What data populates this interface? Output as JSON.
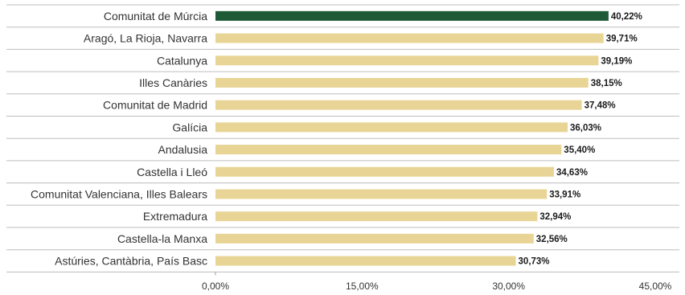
{
  "chart_data": {
    "type": "bar",
    "orientation": "horizontal",
    "categories": [
      "Comunitat de Múrcia",
      "Aragó, La Rioja, Navarra",
      "Catalunya",
      "Illes Canàries",
      "Comunitat de Madrid",
      "Galícia",
      "Andalusia",
      "Castella i Lleó",
      "Comunitat Valenciana, Illes Balears",
      "Extremadura",
      "Castella-la Manxa",
      "Astúries, Cantàbria, País Basc"
    ],
    "values": [
      40.22,
      39.71,
      39.19,
      38.15,
      37.48,
      36.03,
      35.4,
      34.63,
      33.91,
      32.94,
      32.56,
      30.73
    ],
    "value_labels": [
      "40,22%",
      "39,71%",
      "39,19%",
      "38,15%",
      "37,48%",
      "36,03%",
      "35,40%",
      "34,63%",
      "33,91%",
      "32,94%",
      "32,56%",
      "30,73%"
    ],
    "x_ticks": [
      0,
      15,
      30,
      45
    ],
    "x_tick_labels": [
      "0,00%",
      "15,00%",
      "30,00%",
      "45,00%"
    ],
    "xlim": [
      0,
      45
    ],
    "highlight_index": 0,
    "colors": {
      "highlight": "#1e5a36",
      "bar": "#e8d596",
      "separator": "#bdbdbd"
    },
    "grid": false,
    "legend": "none"
  }
}
